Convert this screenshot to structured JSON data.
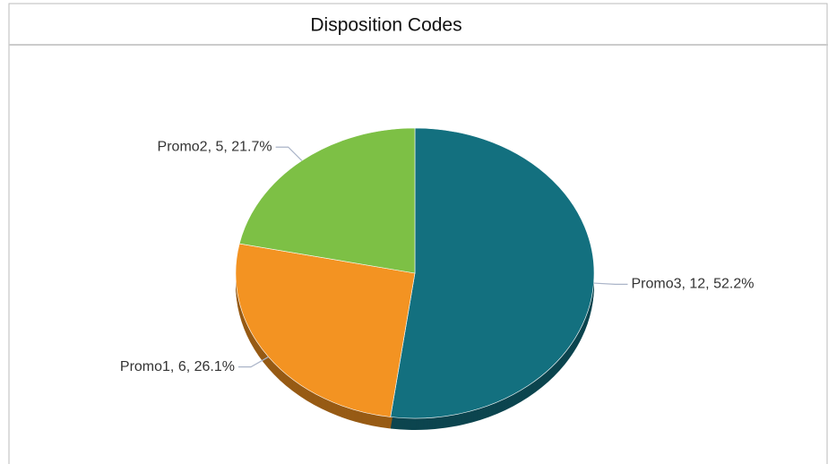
{
  "chart_data": {
    "type": "pie",
    "title": "Disposition Codes",
    "values": [
      12,
      6,
      5
    ],
    "value_labels": [
      "Promo3, 12, 52.2%",
      "Promo1, 6, 26.1%",
      "Promo2, 5, 21.7%"
    ],
    "colors": [
      "#13707f",
      "#f39322",
      "#7dc045"
    ]
  }
}
